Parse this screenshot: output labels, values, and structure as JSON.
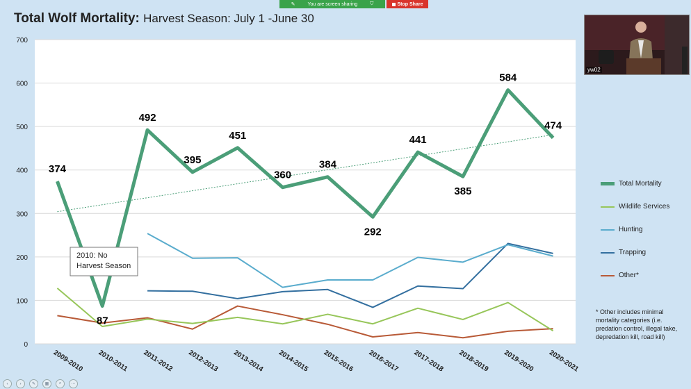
{
  "share_bar": {
    "status": "You are screen sharing",
    "stop_label": "Stop Share"
  },
  "title": {
    "main": "Total Wolf Mortality:",
    "subtitle": "Harvest Season: July 1 -June 30"
  },
  "video": {
    "name": "yw02"
  },
  "annotation": {
    "line1": "2010: No",
    "line2": "Harvest Season"
  },
  "footnote": "* Other includes minimal mortality categories (i.e. predation control, illegal take, depredation kill, road kill)",
  "colors": {
    "total": "#4b9e78",
    "wildlife": "#97c65a",
    "hunting": "#5aaccd",
    "trapping": "#336f9f",
    "other": "#b85a37",
    "trend": "#4b9e78"
  },
  "chart_data": {
    "type": "line",
    "title": "Total Wolf Mortality: Harvest Season: July 1 -June 30",
    "xlabel": "",
    "ylabel": "",
    "ylim": [
      0,
      700
    ],
    "yticks": [
      0,
      100,
      200,
      300,
      400,
      500,
      600,
      700
    ],
    "categories": [
      "2009-2010",
      "2010-2011",
      "2011-2012",
      "2012-2013",
      "2013-2014",
      "2014-2015",
      "2015-2016",
      "2016-2017",
      "2017-2018",
      "2018-2019",
      "2019-2020",
      "2020-2021"
    ],
    "series": [
      {
        "name": "Total Mortality",
        "key": "total",
        "values": [
          374,
          87,
          492,
          395,
          451,
          360,
          384,
          292,
          441,
          385,
          584,
          474
        ],
        "labeled": true
      },
      {
        "name": "Wildlife Services",
        "key": "wildlife",
        "values": [
          128,
          40,
          57,
          47,
          61,
          46,
          68,
          46,
          82,
          56,
          95,
          30
        ]
      },
      {
        "name": "Hunting",
        "key": "hunting",
        "values": [
          null,
          null,
          254,
          197,
          198,
          130,
          147,
          147,
          199,
          188,
          228,
          202
        ]
      },
      {
        "name": "Trapping",
        "key": "trapping",
        "values": [
          null,
          null,
          122,
          121,
          104,
          120,
          125,
          84,
          133,
          127,
          231,
          208
        ]
      },
      {
        "name": "Other*",
        "key": "other",
        "values": [
          65,
          48,
          60,
          34,
          87,
          67,
          45,
          16,
          26,
          14,
          29,
          35
        ]
      }
    ],
    "trendline": {
      "series": "Total Mortality",
      "start": 304,
      "end": 481
    },
    "legend": "right",
    "grid": true
  }
}
